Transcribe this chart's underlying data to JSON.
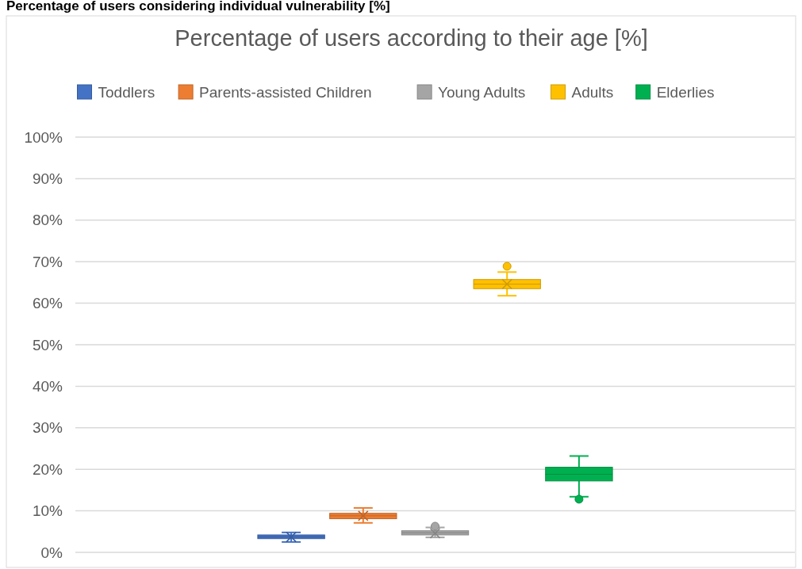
{
  "chart_data": {
    "type": "box",
    "title": "Percentage of users according to their age [%]",
    "annotations": [
      "Percentage of users considering individual vulnerability [%]"
    ],
    "categories": [
      null
    ],
    "series": [
      {
        "name": "Toddlers",
        "color": "#4472c4",
        "boxes": [
          {
            "low": 2.5,
            "q1": 3.3,
            "median": 3.7,
            "q3": 4.2,
            "high": 4.8,
            "mean": 3.7
          }
        ]
      },
      {
        "name": "Parents-assisted Children",
        "color": "#ed7d31",
        "boxes": [
          {
            "low": 7.1,
            "q1": 8.1,
            "median": 8.8,
            "q3": 9.4,
            "high": 10.7,
            "mean": 8.8
          }
        ]
      },
      {
        "name": "Young Adults",
        "color": "#a5a5a5",
        "boxes": [
          {
            "low": 3.6,
            "q1": 4.2,
            "median": 4.7,
            "q3": 5.2,
            "high": 6.0,
            "mean": 4.6,
            "outliers": [
              6.3
            ]
          }
        ]
      },
      {
        "name": "Adults",
        "color": "#ffc000",
        "boxes": [
          {
            "low": 61.8,
            "q1": 63.5,
            "median": 64.6,
            "q3": 65.7,
            "high": 67.5,
            "mean": 64.6,
            "outliers": [
              68.9
            ]
          }
        ]
      },
      {
        "name": "Elderlies",
        "color": "#00b050",
        "boxes": [
          {
            "low": 13.4,
            "q1": 17.2,
            "median": 18.8,
            "q3": 20.5,
            "high": 23.2,
            "outliers": [
              12.8
            ]
          }
        ]
      }
    ],
    "ylim": [
      0,
      100
    ],
    "yticks": [
      {
        "value": 0,
        "label": "0%"
      },
      {
        "value": 10,
        "label": "10%"
      },
      {
        "value": 20,
        "label": "20%"
      },
      {
        "value": 30,
        "label": "30%"
      },
      {
        "value": 40,
        "label": "40%"
      },
      {
        "value": 50,
        "label": "50%"
      },
      {
        "value": 60,
        "label": "60%"
      },
      {
        "value": 70,
        "label": "70%"
      },
      {
        "value": 80,
        "label": "80%"
      },
      {
        "value": 90,
        "label": "90%"
      },
      {
        "value": 100,
        "label": "100%"
      }
    ],
    "grid": "y",
    "legend": "top"
  }
}
